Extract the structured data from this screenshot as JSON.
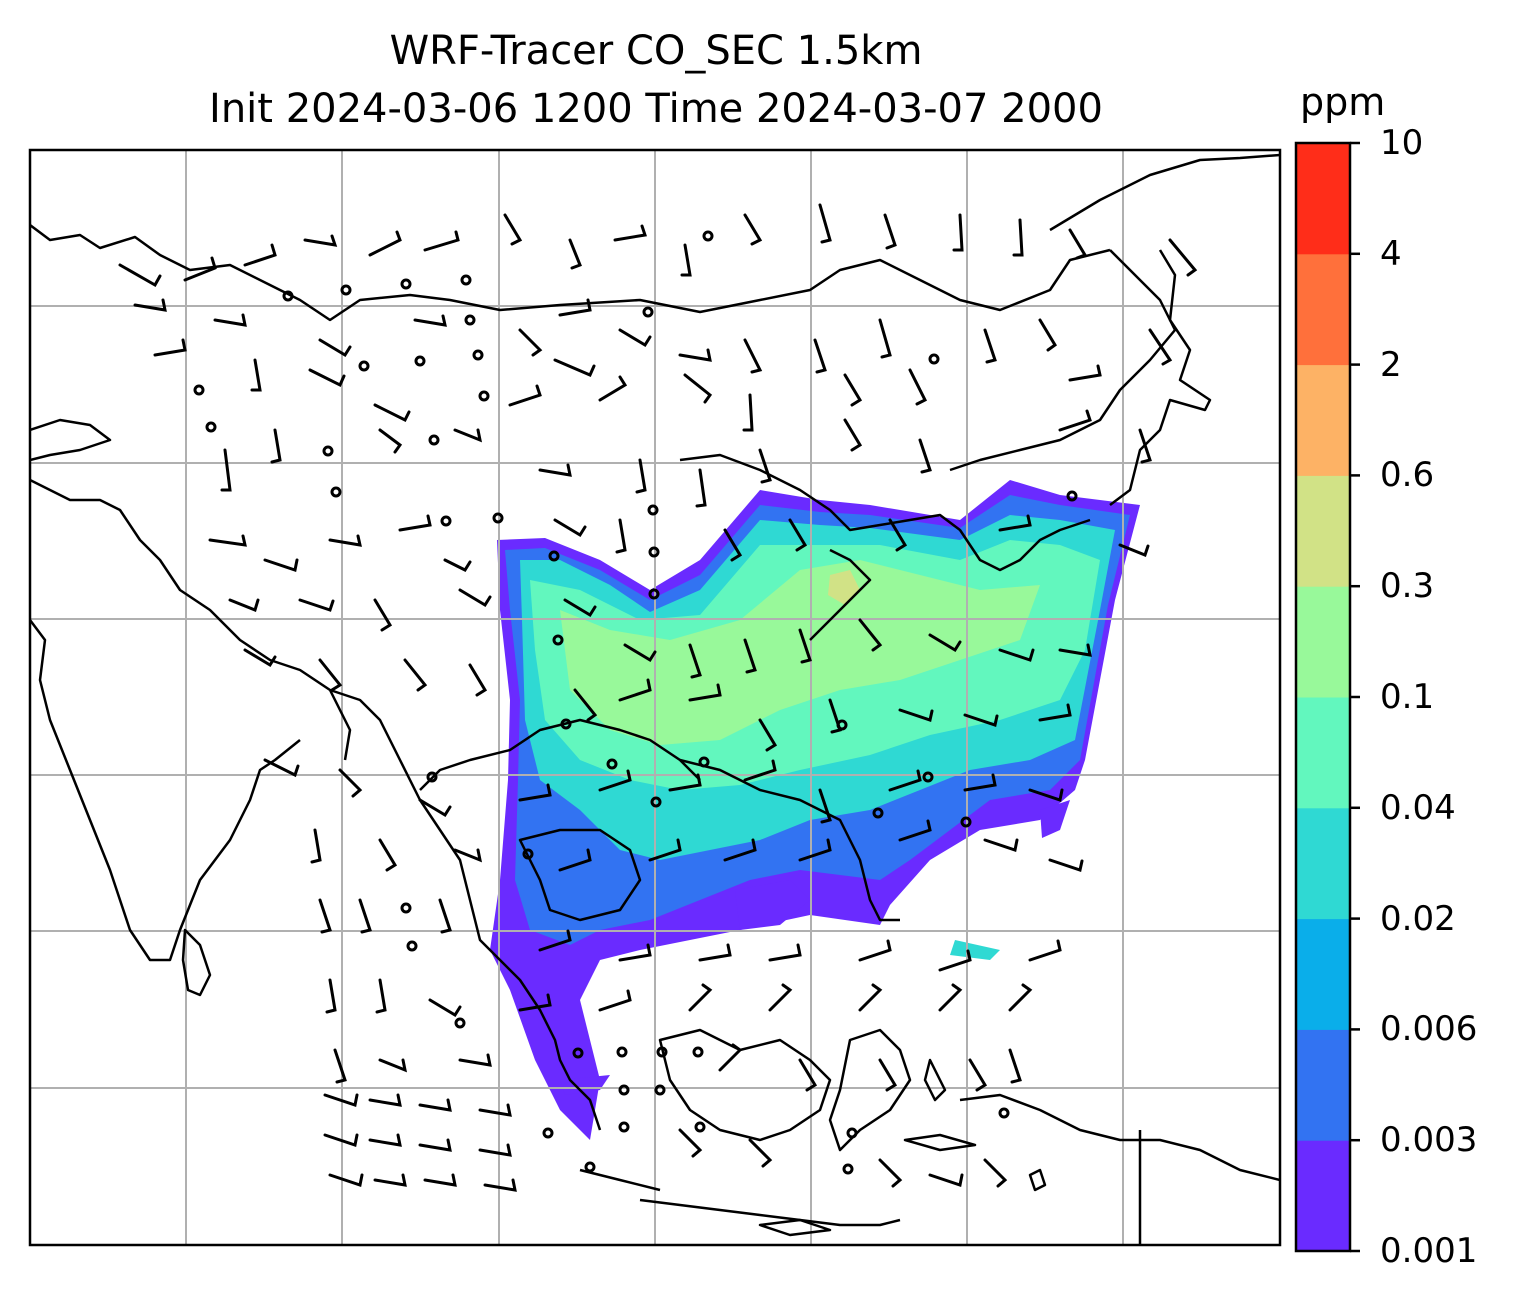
{
  "title": {
    "line1": "WRF-Tracer CO_SEC 1.5km",
    "line2": "Init 2024-03-06 1200 Time 2024-03-07 2000"
  },
  "colorbar": {
    "unit": "ppm",
    "levels": [
      "0.001",
      "0.003",
      "0.006",
      "0.02",
      "0.04",
      "0.1",
      "0.3",
      "0.6",
      "2",
      "4",
      "10"
    ],
    "colors": [
      "#6a2bff",
      "#3273f2",
      "#0aaeea",
      "#2fd9d3",
      "#62f7be",
      "#98f99a",
      "#d1e286",
      "#fdb265",
      "#ff703b",
      "#ff2d19"
    ]
  },
  "map": {
    "gridlines": true,
    "wind_barbs": true,
    "tracer_field": "CO_SEC",
    "level": "1.5km"
  }
}
